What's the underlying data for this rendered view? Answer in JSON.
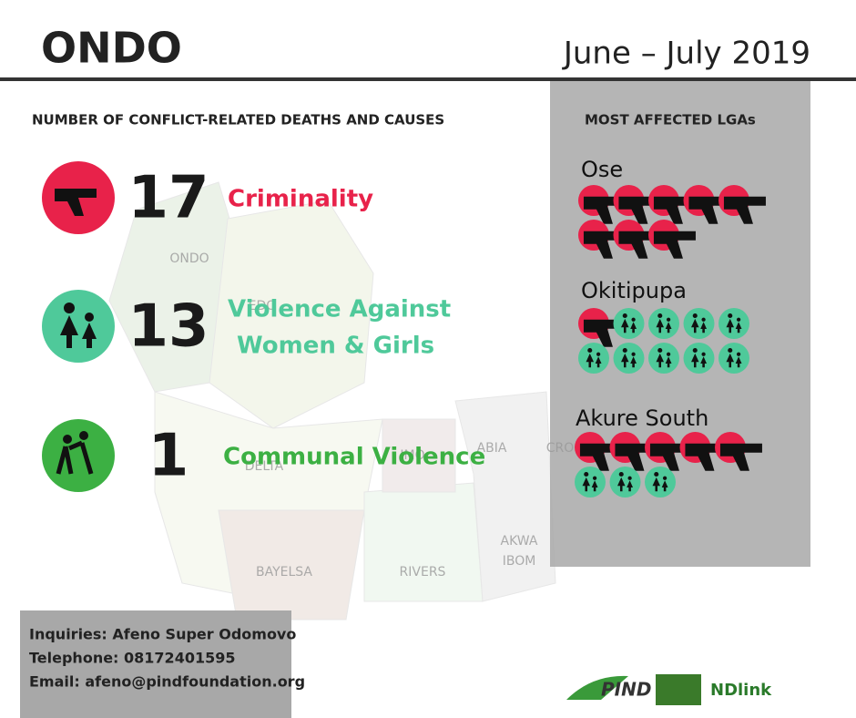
{
  "header": {
    "title": "ONDO",
    "period": "June – July 2019"
  },
  "deaths": {
    "heading": "NUMBER OF CONFLICT-RELATED DEATHS AND CAUSES",
    "causes": [
      {
        "key": "criminality",
        "count": 17,
        "label": [
          "Criminality"
        ],
        "color": "#e8224a"
      },
      {
        "key": "vawg",
        "count": 13,
        "label": [
          "Violence Against",
          "Women & Girls"
        ],
        "color": "#4fc99a"
      },
      {
        "key": "communal",
        "count": 1,
        "label": [
          "Communal Violence"
        ],
        "color": "#3cb043"
      }
    ]
  },
  "lgas": {
    "heading": "MOST AFFECTED LGAs",
    "items": [
      {
        "name": "Ose",
        "counts": {
          "criminality": 8
        }
      },
      {
        "name": "Okitipupa",
        "counts": {
          "criminality": 1,
          "vawg": 9
        }
      },
      {
        "name": "Akure South",
        "counts": {
          "criminality": 5,
          "vawg": 3
        }
      }
    ]
  },
  "map_labels": [
    "ONDO",
    "EDO",
    "DELTA",
    "IMO",
    "ABIA",
    "BAYELSA",
    "RIVERS",
    "AKWA",
    "IBOM",
    "CRO"
  ],
  "contact": [
    "Inquiries: Afeno Super Odomovo",
    "Telephone: 08172401595",
    "Email: afeno@pindfoundation.org"
  ],
  "logos": [
    "PIND",
    "NDlink"
  ]
}
